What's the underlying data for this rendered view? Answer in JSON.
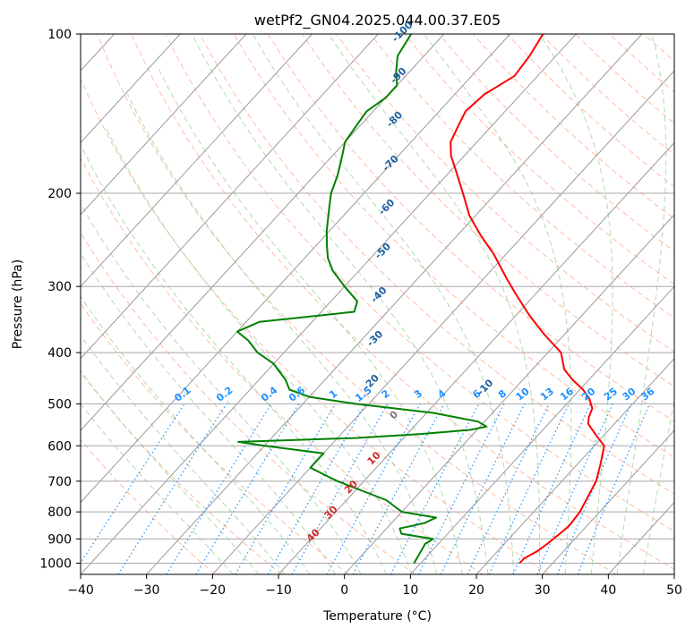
{
  "chart_data": {
    "type": "line",
    "title": "wetPf2_GN04.2025.044.00.37.E05",
    "xlabel": "Temperature (°C)",
    "ylabel": "Pressure (hPa)",
    "xlim": [
      -40,
      50
    ],
    "ylim": [
      1050,
      100
    ],
    "y_scale": "log",
    "skew": true,
    "x_ticks": [
      "−40",
      "−30",
      "−20",
      "−10",
      "0",
      "10",
      "20",
      "30",
      "40",
      "50"
    ],
    "y_ticks": [
      "100",
      "200",
      "300",
      "400",
      "500",
      "600",
      "700",
      "800",
      "900",
      "1000"
    ],
    "grid": true,
    "colors": {
      "temperature": "#ff0000",
      "dewpoint": "#008000",
      "dry_adiabats": "#ffa07a",
      "moist_adiabats": "#90c090",
      "mixing_ratio": "#1e90ff",
      "isotherms": "#808080"
    },
    "series": [
      {
        "role": "temperature",
        "points": [
          [
            1000,
            25
          ],
          [
            980,
            25
          ],
          [
            950,
            26
          ],
          [
            920,
            26.5
          ],
          [
            880,
            27
          ],
          [
            850,
            27.3
          ],
          [
            800,
            27
          ],
          [
            760,
            26.3
          ],
          [
            700,
            25.2
          ],
          [
            650,
            23.5
          ],
          [
            600,
            21.5
          ],
          [
            575,
            19
          ],
          [
            560,
            17.5
          ],
          [
            545,
            16
          ],
          [
            530,
            15.2
          ],
          [
            510,
            14.5
          ],
          [
            490,
            12.8
          ],
          [
            470,
            10.5
          ],
          [
            450,
            7.5
          ],
          [
            430,
            4.8
          ],
          [
            400,
            2
          ],
          [
            370,
            -3
          ],
          [
            340,
            -8
          ],
          [
            310,
            -13
          ],
          [
            290,
            -16.5
          ],
          [
            260,
            -22
          ],
          [
            240,
            -26.5
          ],
          [
            220,
            -31
          ],
          [
            200,
            -35
          ],
          [
            180,
            -39.5
          ],
          [
            170,
            -42
          ],
          [
            160,
            -44
          ],
          [
            150,
            -45
          ],
          [
            140,
            -46
          ],
          [
            130,
            -45.5
          ],
          [
            125,
            -44.5
          ],
          [
            120,
            -43.5
          ],
          [
            110,
            -44
          ],
          [
            100,
            -45
          ]
        ]
      },
      {
        "role": "dewpoint",
        "points": [
          [
            1000,
            9
          ],
          [
            920,
            8
          ],
          [
            900,
            8.5
          ],
          [
            880,
            3
          ],
          [
            860,
            2
          ],
          [
            840,
            5
          ],
          [
            820,
            6
          ],
          [
            800,
            0
          ],
          [
            760,
            -4
          ],
          [
            700,
            -14
          ],
          [
            680,
            -17
          ],
          [
            660,
            -20
          ],
          [
            640,
            -20
          ],
          [
            620,
            -20
          ],
          [
            600,
            -30
          ],
          [
            590,
            -34.5
          ],
          [
            585,
            -26
          ],
          [
            580,
            -17
          ],
          [
            570,
            -8
          ],
          [
            560,
            -1
          ],
          [
            552,
            1
          ],
          [
            540,
            -1
          ],
          [
            520,
            -9
          ],
          [
            500,
            -22
          ],
          [
            485,
            -30
          ],
          [
            470,
            -34
          ],
          [
            450,
            -36
          ],
          [
            420,
            -40
          ],
          [
            400,
            -44
          ],
          [
            380,
            -47
          ],
          [
            365,
            -50
          ],
          [
            350,
            -48
          ],
          [
            335,
            -35
          ],
          [
            320,
            -36
          ],
          [
            300,
            -40
          ],
          [
            280,
            -44
          ],
          [
            265,
            -46.5
          ],
          [
            250,
            -48.5
          ],
          [
            235,
            -50.5
          ],
          [
            215,
            -53
          ],
          [
            200,
            -55
          ],
          [
            185,
            -56.5
          ],
          [
            170,
            -58.5
          ],
          [
            160,
            -60
          ],
          [
            150,
            -60.5
          ],
          [
            140,
            -61
          ],
          [
            132,
            -60
          ],
          [
            125,
            -60
          ],
          [
            118,
            -62
          ],
          [
            110,
            -64
          ],
          [
            100,
            -65
          ]
        ]
      }
    ],
    "mixing_ratio_labels": [
      "0.1",
      "0.2",
      "0.4",
      "0.6",
      "1",
      "1.5",
      "2",
      "3",
      "4",
      "6",
      "8",
      "10",
      "13",
      "16",
      "20",
      "25",
      "30",
      "36"
    ],
    "moist_adiabat_labels": [
      "-100",
      "-90",
      "-80",
      "-70",
      "-60",
      "-50",
      "-40",
      "-30",
      "-20",
      "-10",
      "0",
      "10",
      "20",
      "30",
      "40"
    ]
  }
}
